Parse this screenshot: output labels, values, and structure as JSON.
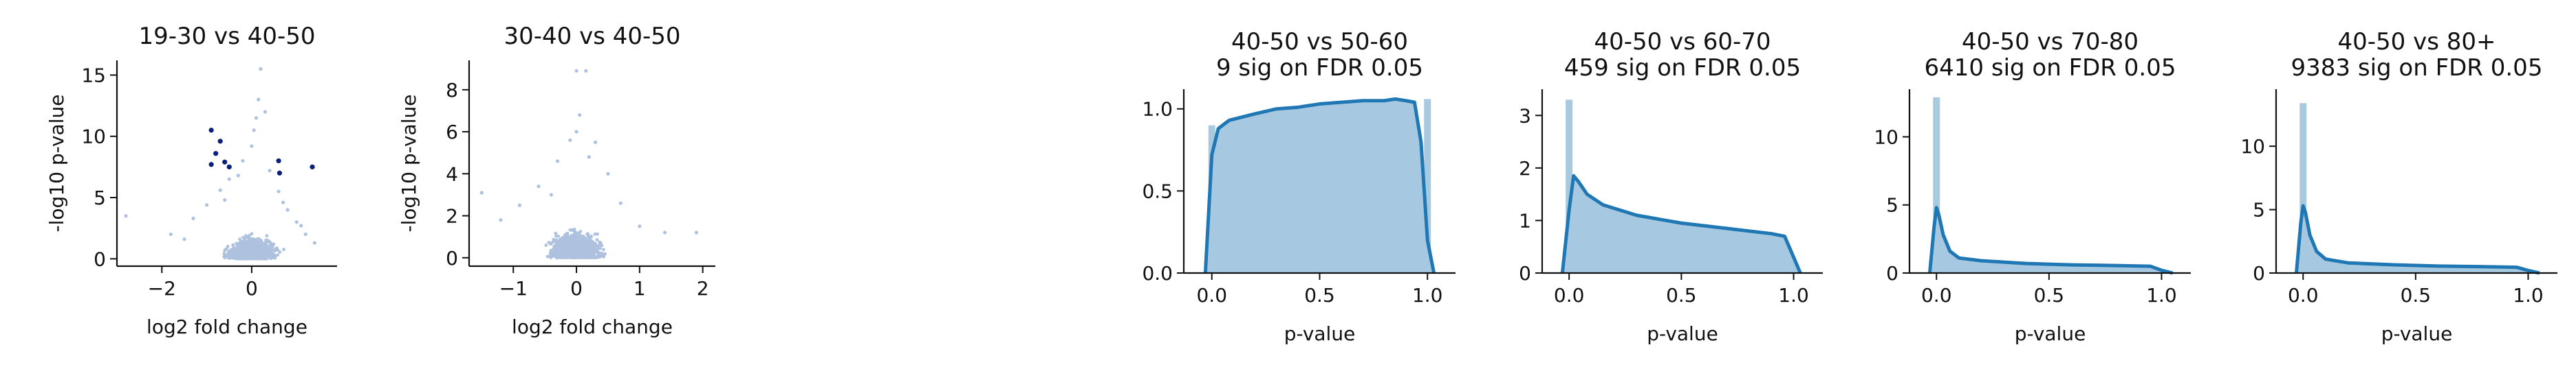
{
  "chart_data": [
    {
      "type": "scatter",
      "title": "19-30 vs 40-50",
      "xlabel": "log2 fold change",
      "ylabel": "-log10 p-value",
      "xlim": [
        -3.0,
        1.9
      ],
      "ylim": [
        -0.6,
        16.2
      ],
      "xticks": [
        -2,
        0
      ],
      "yticks": [
        0,
        5,
        10,
        15
      ],
      "colors": {
        "nonsig": "#aec2e0",
        "sig": "#0a1f7a"
      },
      "series": [
        {
          "values": [
            [
              -2.8,
              3.5
            ],
            [
              -1.8,
              2.0
            ],
            [
              -1.3,
              3.3
            ],
            [
              -1.0,
              4.4
            ],
            [
              -0.7,
              5.6
            ],
            [
              -0.5,
              6.5
            ],
            [
              -0.2,
              8.0
            ],
            [
              0.0,
              9.2
            ],
            [
              0.1,
              11.5
            ],
            [
              0.15,
              13.0
            ],
            [
              0.2,
              15.5
            ],
            [
              0.3,
              12.0
            ],
            [
              0.4,
              7.2
            ],
            [
              0.6,
              5.5
            ],
            [
              0.8,
              4.0
            ],
            [
              1.0,
              3.0
            ],
            [
              1.2,
              2.0
            ],
            [
              1.4,
              1.3
            ],
            [
              -0.3,
              6.8
            ],
            [
              0.05,
              10.5
            ],
            [
              -0.6,
              4.8
            ],
            [
              0.7,
              4.6
            ],
            [
              1.1,
              2.7
            ],
            [
              -1.5,
              1.6
            ]
          ]
        },
        {
          "values": [
            [
              -0.9,
              10.5
            ],
            [
              -0.7,
              9.6
            ],
            [
              -0.8,
              8.6
            ],
            [
              -0.9,
              7.7
            ],
            [
              -0.5,
              7.5
            ],
            [
              -0.6,
              7.9
            ],
            [
              0.6,
              8.0
            ],
            [
              0.62,
              7.0
            ],
            [
              1.35,
              7.5
            ]
          ]
        }
      ]
    },
    {
      "type": "scatter",
      "title": "30-40 vs 40-50",
      "xlabel": "log2 fold change",
      "ylabel": "-log10 p-value",
      "xlim": [
        -1.7,
        2.2
      ],
      "ylim": [
        -0.4,
        9.4
      ],
      "xticks": [
        -1,
        0,
        1,
        2
      ],
      "yticks": [
        0,
        2,
        4,
        6,
        8
      ],
      "colors": {
        "nonsig": "#aec2e0"
      },
      "series": [
        {
          "values": [
            [
              -1.5,
              3.1
            ],
            [
              -1.2,
              1.8
            ],
            [
              -0.9,
              2.5
            ],
            [
              -0.6,
              3.4
            ],
            [
              -0.3,
              4.6
            ],
            [
              0.0,
              6.0
            ],
            [
              0.05,
              6.8
            ],
            [
              0.0,
              8.9
            ],
            [
              0.15,
              8.9
            ],
            [
              0.3,
              5.5
            ],
            [
              0.5,
              4.0
            ],
            [
              0.7,
              2.6
            ],
            [
              1.0,
              1.5
            ],
            [
              1.4,
              1.2
            ],
            [
              1.9,
              1.2
            ],
            [
              -0.1,
              5.6
            ],
            [
              0.2,
              4.8
            ],
            [
              -0.4,
              3.0
            ]
          ]
        }
      ]
    },
    {
      "type": "area",
      "title": "40-50 vs 50-60",
      "subtitle": "9 sig on FDR 0.05",
      "xlabel": "p-value",
      "ylabel": "",
      "xlim": [
        -0.13,
        1.13
      ],
      "ylim": [
        0.0,
        1.12
      ],
      "xticks": [
        "0.0",
        "0.5",
        "1.0"
      ],
      "yticks": [
        "0.0",
        "0.5",
        "1.0"
      ],
      "hist_bars": [
        {
          "x": 0.0,
          "value": 0.9
        },
        {
          "x": 1.0,
          "value": 1.06
        }
      ],
      "x": [
        -0.03,
        0.0,
        0.03,
        0.08,
        0.2,
        0.3,
        0.4,
        0.5,
        0.6,
        0.7,
        0.8,
        0.85,
        0.9,
        0.94,
        0.97,
        1.0,
        1.03
      ],
      "y": [
        0.0,
        0.72,
        0.88,
        0.93,
        0.97,
        1.0,
        1.01,
        1.03,
        1.04,
        1.05,
        1.05,
        1.06,
        1.05,
        1.04,
        0.8,
        0.2,
        0.0
      ]
    },
    {
      "type": "area",
      "title": "40-50 vs 60-70",
      "subtitle": "459 sig on FDR 0.05",
      "xlabel": "p-value",
      "ylabel": "",
      "xlim": [
        -0.12,
        1.13
      ],
      "ylim": [
        0.0,
        3.5
      ],
      "xticks": [
        "0.0",
        "0.5",
        "1.0"
      ],
      "yticks": [
        "0",
        "1",
        "2",
        "3"
      ],
      "hist_bars": [
        {
          "x": 0.0,
          "value": 3.3
        }
      ],
      "x": [
        -0.03,
        0.0,
        0.02,
        0.04,
        0.08,
        0.15,
        0.3,
        0.5,
        0.7,
        0.9,
        0.96,
        1.0,
        1.03
      ],
      "y": [
        0.0,
        1.2,
        1.85,
        1.75,
        1.5,
        1.3,
        1.1,
        0.95,
        0.85,
        0.75,
        0.7,
        0.3,
        0.0
      ]
    },
    {
      "type": "area",
      "title": "40-50 vs 70-80",
      "subtitle": "6410 sig on FDR 0.05",
      "xlabel": "p-value",
      "ylabel": "",
      "xlim": [
        -0.12,
        1.13
      ],
      "ylim": [
        0.0,
        13.5
      ],
      "xticks": [
        "0.0",
        "0.5",
        "1.0"
      ],
      "yticks": [
        "0",
        "5",
        "10"
      ],
      "hist_bars": [
        {
          "x": 0.0,
          "value": 12.9
        }
      ],
      "x": [
        -0.03,
        -0.01,
        0.0,
        0.01,
        0.03,
        0.06,
        0.1,
        0.2,
        0.4,
        0.6,
        0.8,
        0.95,
        1.0,
        1.05
      ],
      "y": [
        0.0,
        3.5,
        4.8,
        4.3,
        2.8,
        1.6,
        1.1,
        0.9,
        0.7,
        0.6,
        0.55,
        0.5,
        0.2,
        0.0
      ]
    },
    {
      "type": "area",
      "title": "40-50 vs 80+",
      "subtitle": "9383 sig on FDR 0.05",
      "xlabel": "p-value",
      "ylabel": "",
      "xlim": [
        -0.12,
        1.13
      ],
      "ylim": [
        0.0,
        14.5
      ],
      "xticks": [
        "0.0",
        "0.5",
        "1.0"
      ],
      "yticks": [
        "0",
        "5",
        "10"
      ],
      "hist_bars": [
        {
          "x": 0.0,
          "value": 13.4
        }
      ],
      "x": [
        -0.03,
        -0.01,
        0.0,
        0.01,
        0.03,
        0.06,
        0.1,
        0.2,
        0.4,
        0.6,
        0.8,
        0.95,
        1.0,
        1.05
      ],
      "y": [
        0.0,
        4.0,
        5.3,
        4.8,
        3.0,
        1.7,
        1.1,
        0.8,
        0.65,
        0.55,
        0.5,
        0.45,
        0.2,
        0.0
      ]
    }
  ]
}
